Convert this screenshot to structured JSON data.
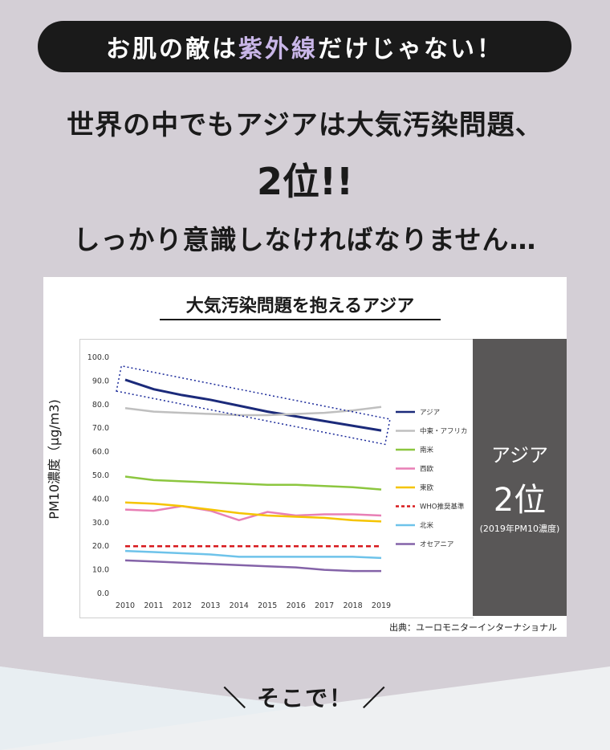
{
  "banner": {
    "prefix": "お肌の敵は",
    "highlight": "紫外線",
    "suffix": "だけじゃない！"
  },
  "headline": {
    "line1": "世界の中でもアジアは大気汚染問題、",
    "line2": "2位!!",
    "line3": "しっかり意識しなければなりません…"
  },
  "side_panel": {
    "line1": "アジア",
    "line2": "2位",
    "line3": "(2019年PM10濃度)"
  },
  "source": "出典：ユーロモニターインターナショナル",
  "cta": "＼ そこで！ ／",
  "colors": {
    "background": "#d4cfd6",
    "banner": "#1a1a1a",
    "highlight": "#c9b6e8",
    "panel": "#595757"
  },
  "chart_data": {
    "type": "line",
    "title": "大気汚染問題を抱えるアジア",
    "ylabel": "PM10濃度（μg/m3)",
    "xlabel": "",
    "x": [
      "2010",
      "2011",
      "2012",
      "2013",
      "2014",
      "2015",
      "2016",
      "2017",
      "2018",
      "2019"
    ],
    "ylim": [
      0,
      100
    ],
    "yticks": [
      "0.0",
      "10.0",
      "20.0",
      "30.0",
      "40.0",
      "50.0",
      "60.0",
      "70.0",
      "80.0",
      "90.0",
      "100.0"
    ],
    "grid": false,
    "legend_position": "right",
    "series": [
      {
        "name": "アジア",
        "color": "#1b2a7a",
        "dashed": false,
        "values": [
          90.5,
          86.5,
          84,
          82,
          79.5,
          77,
          75,
          73,
          71,
          69
        ]
      },
      {
        "name": "中東・アフリカ",
        "color": "#bfbfbf",
        "dashed": false,
        "values": [
          78.5,
          77,
          76.5,
          76,
          75.5,
          75.5,
          76,
          76.5,
          77.5,
          79
        ]
      },
      {
        "name": "南米",
        "color": "#8cc63f",
        "dashed": false,
        "values": [
          49.5,
          48,
          47.5,
          47,
          46.5,
          46,
          46,
          45.5,
          45,
          44
        ]
      },
      {
        "name": "西欧",
        "color": "#e87fb5",
        "dashed": false,
        "values": [
          35.5,
          35,
          37,
          35,
          31,
          34.5,
          33,
          33.5,
          33.5,
          33
        ]
      },
      {
        "name": "東欧",
        "color": "#f5c400",
        "dashed": false,
        "values": [
          38.5,
          38,
          37,
          35.5,
          34,
          33,
          32.5,
          32,
          31,
          30.5
        ]
      },
      {
        "name": "WHO推奨基準",
        "color": "#d7191c",
        "dashed": true,
        "values": [
          20,
          20,
          20,
          20,
          20,
          20,
          20,
          20,
          20,
          20
        ]
      },
      {
        "name": "北米",
        "color": "#6ec3ea",
        "dashed": false,
        "values": [
          18,
          17.5,
          17,
          16.5,
          15.5,
          15.5,
          15.5,
          15.5,
          15.5,
          15
        ]
      },
      {
        "name": "オセアニア",
        "color": "#8463a8",
        "dashed": false,
        "values": [
          14,
          13.5,
          13,
          12.5,
          12,
          11.5,
          11,
          10,
          9.5,
          9.5
        ]
      }
    ],
    "annotation": {
      "series": "アジア",
      "shape": "dashed-box"
    }
  }
}
